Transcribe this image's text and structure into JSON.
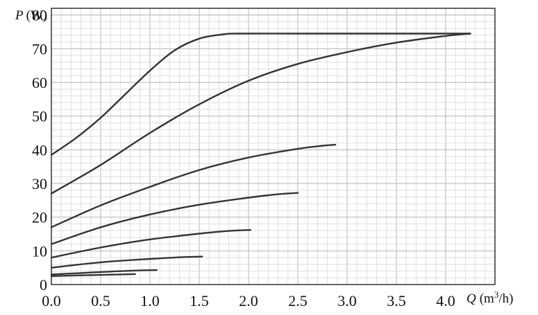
{
  "chart_data": {
    "type": "line",
    "title": "",
    "xlabel": "Q",
    "xlabel_unit": "m3/h",
    "ylabel": "P",
    "ylabel_unit": "W",
    "xlim": [
      0,
      4.5
    ],
    "ylim": [
      0,
      82
    ],
    "grid": true,
    "legend": "none",
    "x_ticks": [
      "0.0",
      "0.5",
      "1.0",
      "1.5",
      "2.0",
      "2.5",
      "3.0",
      "3.5",
      "4.0"
    ],
    "y_ticks": [
      "0",
      "10",
      "20",
      "30",
      "40",
      "50",
      "60",
      "70",
      "80"
    ],
    "series": [
      {
        "x": [
          0,
          0.25,
          0.5,
          0.75,
          1.0,
          1.25,
          1.5,
          1.75,
          1.9,
          2.5,
          3.0,
          3.5,
          4.0,
          4.25
        ],
        "y": [
          38.5,
          43.5,
          49.5,
          56.5,
          63.5,
          69.5,
          73,
          74.3,
          74.5,
          74.5,
          74.5,
          74.5,
          74.5,
          74.5
        ]
      },
      {
        "x": [
          0,
          0.5,
          1.0,
          1.5,
          2.0,
          2.5,
          3.0,
          3.5,
          4.0,
          4.25
        ],
        "y": [
          27,
          35.5,
          45,
          53.5,
          60.5,
          65.5,
          69,
          71.8,
          73.8,
          74.5
        ]
      },
      {
        "x": [
          0,
          0.5,
          1.0,
          1.5,
          2.0,
          2.5,
          2.75,
          2.88
        ],
        "y": [
          17,
          23.5,
          29,
          34,
          37.7,
          40.3,
          41.2,
          41.5
        ]
      },
      {
        "x": [
          0,
          0.5,
          1.0,
          1.5,
          2.0,
          2.3,
          2.5
        ],
        "y": [
          12,
          17,
          20.8,
          23.7,
          25.8,
          26.8,
          27.2
        ]
      },
      {
        "x": [
          0,
          0.5,
          1.0,
          1.5,
          1.8,
          2.02
        ],
        "y": [
          8,
          11,
          13.4,
          15.1,
          15.9,
          16.2
        ]
      },
      {
        "x": [
          0,
          0.5,
          1.0,
          1.3,
          1.53
        ],
        "y": [
          5,
          6.6,
          7.6,
          8.1,
          8.3
        ]
      },
      {
        "x": [
          0,
          0.5,
          0.8,
          1.07
        ],
        "y": [
          3,
          3.7,
          4.1,
          4.3
        ]
      },
      {
        "x": [
          0,
          0.4,
          0.85
        ],
        "y": [
          2.5,
          2.8,
          3.1
        ]
      }
    ]
  }
}
